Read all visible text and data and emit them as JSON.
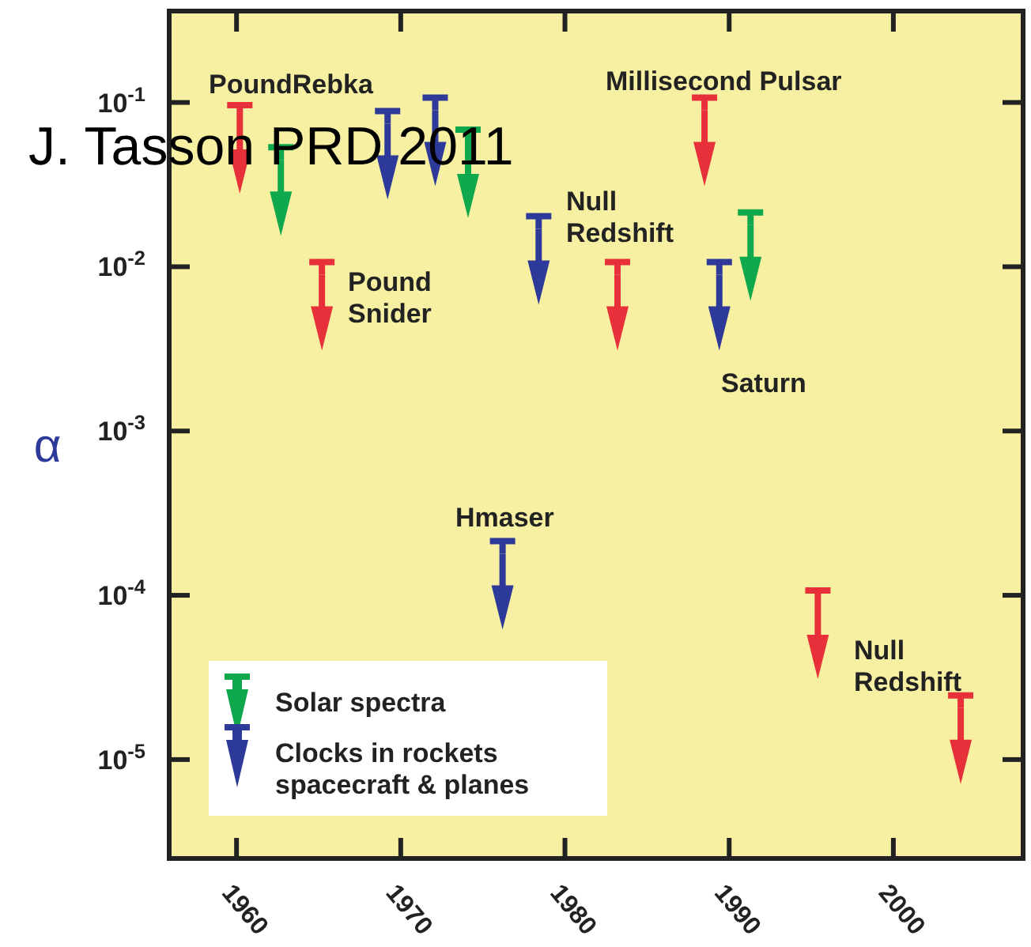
{
  "chart_data": {
    "type": "scatter",
    "ylabel": "α",
    "log": "y",
    "grid": false,
    "legend": "bottom left",
    "xlim": [
      1955.9,
      2007.9
    ],
    "xticks": [
      1960,
      1970,
      1980,
      1990,
      2000
    ],
    "ylim": [
      2.5e-06,
      0.36
    ],
    "yticks": [
      {
        "value": 0.1,
        "label": "10$^{-1}$"
      },
      {
        "value": 0.01,
        "label": "10$^{-2}$"
      },
      {
        "value": 0.001,
        "label": "10$^{-3}$"
      },
      {
        "value": 0.0001,
        "label": "10$^{-4}$"
      },
      {
        "value": 1e-05,
        "label": "10$^{-5}$"
      }
    ],
    "series": [
      {
        "color": "#e8303a",
        "x": [
          1960.2,
          1965.2,
          1983.2,
          1988.5,
          1995.4,
          2004.1
        ],
        "values": [
          0.09,
          0.01,
          0.01,
          0.1,
          0.0001,
          2.3e-05
        ]
      },
      {
        "name": "Solar spectra",
        "color": "#10a84c",
        "x": [
          1962.7,
          1974.1,
          1991.3
        ],
        "values": [
          0.05,
          0.064,
          0.02
        ]
      },
      {
        "name": "Clocks in rockets\nspacecraft & planes",
        "color": "#2e3a9a",
        "x": [
          1969.2,
          1972.1,
          1976.2,
          1978.4,
          1989.4
        ],
        "values": [
          0.083,
          0.1,
          0.0002,
          0.019,
          0.01
        ]
      }
    ],
    "annotations": [
      "J. Tasson PRD 2011",
      "PoundRebka",
      "Millisecond Pulsar",
      "Null\nRedshift",
      "Pound\nSnider",
      "Saturn",
      "Hmaser",
      "Null\nRedshift"
    ]
  }
}
